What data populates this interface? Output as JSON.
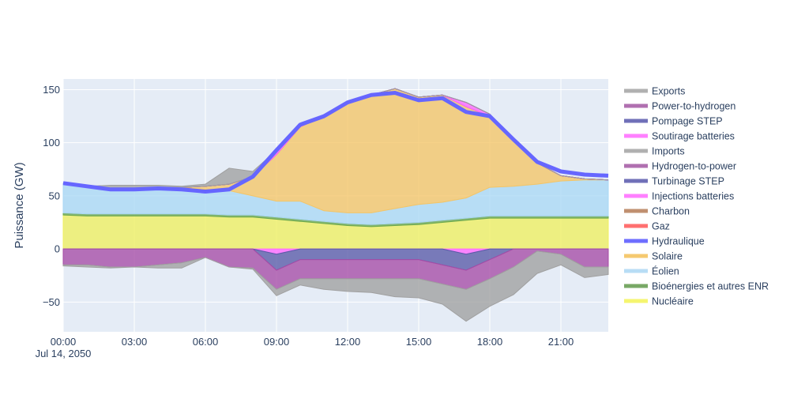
{
  "chart_data": {
    "type": "area",
    "title": "",
    "ylabel": "Puissance (GW)",
    "xlabel": "",
    "x": [
      0,
      1,
      2,
      3,
      4,
      5,
      6,
      7,
      8,
      9,
      10,
      11,
      12,
      13,
      14,
      15,
      16,
      17,
      18,
      19,
      20,
      21,
      22,
      23
    ],
    "xlim": [
      0,
      23
    ],
    "ylim": [
      -78,
      160
    ],
    "x_ticks": [
      {
        "x": 0,
        "label": "00:00",
        "sublabel": "Jul 14, 2050"
      },
      {
        "x": 3,
        "label": "03:00"
      },
      {
        "x": 6,
        "label": "06:00"
      },
      {
        "x": 9,
        "label": "09:00"
      },
      {
        "x": 12,
        "label": "12:00"
      },
      {
        "x": 15,
        "label": "15:00"
      },
      {
        "x": 18,
        "label": "18:00"
      },
      {
        "x": 21,
        "label": "21:00"
      }
    ],
    "y_ticks": [
      {
        "y": -50,
        "label": "−50"
      },
      {
        "y": 0,
        "label": "0"
      },
      {
        "y": 50,
        "label": "50"
      },
      {
        "y": 100,
        "label": "100"
      },
      {
        "y": 150,
        "label": "150"
      }
    ],
    "grid": true,
    "legend_position": "right",
    "series": [
      {
        "name": "Exports",
        "color": "#a0a0a0",
        "side": "negative",
        "values": [
          -1,
          -2,
          -1,
          0,
          -3,
          -5,
          0,
          0,
          -1,
          -6,
          -6,
          -10,
          -12,
          -13,
          -17,
          -18,
          -19,
          -30,
          -26,
          -26,
          -21,
          -10,
          -10,
          -7
        ]
      },
      {
        "name": "Power-to-hydrogen",
        "color": "#a64ca6",
        "side": "negative",
        "values": [
          -15,
          -15,
          -17,
          -17,
          -15,
          -13,
          -8,
          -17,
          -18,
          -18,
          -18,
          -18,
          -18,
          -18,
          -18,
          -18,
          -18,
          -18,
          -18,
          -17,
          -2,
          -5,
          -17,
          -17
        ]
      },
      {
        "name": "Pompage STEP",
        "color": "#5a5aa8",
        "side": "negative",
        "values": [
          0,
          0,
          0,
          0,
          0,
          0,
          0,
          0,
          0,
          -15,
          -10,
          -10,
          -10,
          -10,
          -10,
          -10,
          -15,
          -15,
          -10,
          0,
          0,
          0,
          0,
          0
        ]
      },
      {
        "name": "Soutirage batteries",
        "color": "#ff66ff",
        "side": "negative",
        "values": [
          0,
          0,
          0,
          0,
          0,
          0,
          0,
          0,
          0,
          -5,
          0,
          0,
          0,
          0,
          0,
          0,
          0,
          -5,
          0,
          0,
          0,
          0,
          0,
          0
        ]
      },
      {
        "name": "Imports",
        "color": "#a0a0a0",
        "side": "positive",
        "values": [
          0,
          0,
          4,
          4,
          2,
          1,
          2,
          15,
          5,
          0,
          0,
          0,
          0,
          0,
          0,
          0,
          0,
          0,
          0,
          0,
          0,
          0,
          0,
          0
        ]
      },
      {
        "name": "Hydrogen-to-power",
        "color": "#a64ca6",
        "side": "positive",
        "values": [
          0,
          0,
          0,
          0,
          0,
          0,
          0,
          0,
          0,
          0,
          0,
          0,
          0,
          0,
          0,
          0,
          0,
          0,
          0,
          0,
          0,
          0,
          0,
          0
        ]
      },
      {
        "name": "Turbinage STEP",
        "color": "#5a5aa8",
        "side": "positive",
        "values": [
          0,
          0,
          0,
          0,
          0,
          0,
          0,
          0,
          0,
          0,
          0,
          0,
          0,
          0,
          0,
          0,
          0,
          0,
          0,
          0,
          0,
          0,
          0,
          0
        ]
      },
      {
        "name": "Injections batteries",
        "color": "#ff66ff",
        "side": "positive",
        "values": [
          0,
          0,
          0,
          0,
          0,
          0,
          0,
          0,
          0,
          4,
          1,
          0,
          0,
          0,
          0,
          0,
          0,
          4,
          2,
          0,
          0,
          0,
          0,
          0
        ]
      },
      {
        "name": "Charbon",
        "color": "#bc8f6f",
        "side": "positive",
        "values": [
          0,
          0,
          0,
          0,
          0,
          0,
          0,
          0,
          0,
          0,
          0,
          0,
          0,
          0,
          0,
          0,
          0,
          0,
          0,
          0,
          0,
          0,
          0,
          0
        ]
      },
      {
        "name": "Gaz",
        "color": "#ff6666",
        "side": "positive",
        "values": [
          0,
          0,
          0,
          0,
          0,
          0,
          0,
          0,
          0,
          0,
          0,
          0,
          0,
          0,
          0,
          0,
          0,
          0,
          0,
          0,
          0,
          0,
          0,
          0
        ]
      },
      {
        "name": "Hydraulique",
        "color": "#6666ff",
        "side": "positive",
        "values": [
          0,
          0,
          0,
          0,
          0,
          0,
          0,
          0,
          0,
          0,
          0,
          0,
          0,
          0,
          0,
          0,
          0,
          0,
          0,
          0,
          0,
          0,
          0,
          0
        ]
      },
      {
        "name": "Solaire",
        "color": "#f5c566",
        "side": "positive",
        "values": [
          0,
          0,
          0,
          0,
          0,
          0,
          3,
          6,
          18,
          44,
          70,
          89,
          103,
          111,
          113,
          101,
          101,
          86,
          67,
          43,
          20,
          5,
          1,
          0
        ]
      },
      {
        "name": "Éolien",
        "color": "#aad8f5",
        "side": "positive",
        "values": [
          28,
          26,
          23,
          23,
          25,
          25,
          23,
          23,
          18,
          15,
          17,
          10,
          10,
          11,
          14,
          17,
          17,
          19,
          27,
          28,
          30,
          33,
          34,
          34
        ]
      },
      {
        "name": "Bioénergies et autres ENR",
        "color": "#6aa84f",
        "side": "positive",
        "values": [
          2,
          2,
          2,
          2,
          2,
          2,
          2,
          2,
          2,
          2,
          2,
          2,
          2,
          2,
          2,
          2,
          2,
          2,
          2,
          2,
          2,
          2,
          2,
          2
        ]
      },
      {
        "name": "Nucléaire",
        "color": "#f0f060",
        "side": "positive",
        "values": [
          32,
          31,
          31,
          31,
          31,
          31,
          31,
          30,
          30,
          28,
          26,
          24,
          22,
          21,
          22,
          23,
          25,
          27,
          29,
          29,
          29,
          29,
          29,
          29
        ]
      }
    ],
    "total_line": {
      "name": "Hydraulique",
      "color": "#6666ff",
      "values": [
        62,
        59,
        56,
        56,
        57,
        56,
        54,
        56,
        68,
        93,
        117,
        125,
        138,
        145,
        147,
        140,
        142,
        129,
        125,
        103,
        82,
        73,
        70,
        69
      ]
    },
    "legend": [
      {
        "name": "Exports",
        "color": "#b0b0b0"
      },
      {
        "name": "Power-to-hydrogen",
        "color": "#b070b0"
      },
      {
        "name": "Pompage STEP",
        "color": "#7070b8"
      },
      {
        "name": "Soutirage batteries",
        "color": "#ff80ff"
      },
      {
        "name": "Imports",
        "color": "#b0b0b0"
      },
      {
        "name": "Hydrogen-to-power",
        "color": "#b070b0"
      },
      {
        "name": "Turbinage STEP",
        "color": "#7070b8"
      },
      {
        "name": "Injections batteries",
        "color": "#ff80ff"
      },
      {
        "name": "Charbon",
        "color": "#c09070"
      },
      {
        "name": "Gaz",
        "color": "#ff7070"
      },
      {
        "name": "Hydraulique",
        "color": "#6e6eff"
      },
      {
        "name": "Solaire",
        "color": "#f5c970"
      },
      {
        "name": "Éolien",
        "color": "#b8ddf5"
      },
      {
        "name": "Bioénergies et autres ENR",
        "color": "#78a866"
      },
      {
        "name": "Nucléaire",
        "color": "#f5f570"
      }
    ]
  }
}
